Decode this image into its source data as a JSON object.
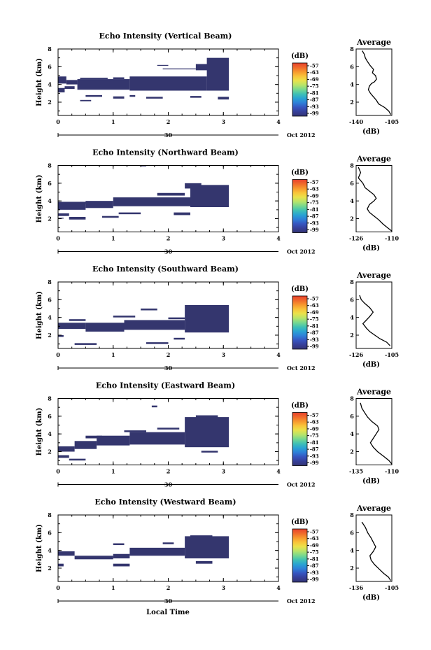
{
  "x_axis_label": "Local Time",
  "colorbar": {
    "unit": "(dB)",
    "ticks": [
      "-57",
      "-63",
      "-69",
      "-75",
      "-81",
      "-87",
      "-93",
      "-99"
    ],
    "colors": [
      "#e8412d",
      "#f06a2c",
      "#f7982e",
      "#f9c43a",
      "#e9e24b",
      "#b7e46a",
      "#77d88f",
      "#3fc1b4",
      "#29a3d3",
      "#2e7fd8",
      "#3655c0",
      "#363f99",
      "#343573"
    ]
  },
  "chart_data": [
    {
      "type": "heatmap",
      "title": "Echo Intensity (Vertical Beam)",
      "ylabel": "Height (km)",
      "ylim": [
        0.5,
        8
      ],
      "xlim": [
        0,
        4
      ],
      "y_ticks": [
        "2",
        "4",
        "6",
        "8"
      ],
      "x_ticks": [
        "0",
        "1",
        "2",
        "3",
        "4"
      ],
      "date_day": "30",
      "date_label": "Oct 2012",
      "fill": "#34366e",
      "blocks": [
        [
          0.0,
          0.15,
          4.1,
          4.9
        ],
        [
          0.15,
          0.35,
          4.0,
          4.5
        ],
        [
          0.35,
          1.3,
          3.4,
          4.6
        ],
        [
          0.4,
          0.9,
          4.6,
          4.75
        ],
        [
          1.3,
          2.7,
          3.3,
          4.9
        ],
        [
          1.0,
          1.2,
          4.6,
          4.8
        ],
        [
          2.7,
          3.1,
          3.3,
          7.0
        ],
        [
          2.5,
          2.8,
          5.6,
          6.3
        ],
        [
          1.9,
          2.5,
          5.7,
          5.8
        ],
        [
          0.0,
          0.12,
          3.1,
          3.6
        ],
        [
          0.12,
          0.3,
          3.5,
          3.8
        ],
        [
          0.5,
          0.8,
          2.6,
          2.8
        ],
        [
          1.0,
          1.2,
          2.4,
          2.65
        ],
        [
          1.3,
          1.4,
          2.6,
          2.8
        ],
        [
          1.6,
          1.9,
          2.4,
          2.6
        ],
        [
          2.4,
          2.6,
          2.5,
          2.7
        ],
        [
          2.9,
          3.1,
          2.3,
          2.6
        ],
        [
          1.8,
          2.0,
          6.1,
          6.2
        ],
        [
          0.4,
          0.6,
          2.1,
          2.25
        ]
      ],
      "avg": {
        "xlim": [
          -140,
          -105
        ],
        "x_ticks": [
          "-140",
          "-105"
        ],
        "ylim": [
          0.5,
          8
        ],
        "xlabel": "(dB)",
        "title": "Average",
        "profile": [
          [
            -106,
            0.6
          ],
          [
            -108,
            1.0
          ],
          [
            -112,
            1.4
          ],
          [
            -118,
            1.8
          ],
          [
            -120,
            2.2
          ],
          [
            -123,
            2.6
          ],
          [
            -126,
            3.0
          ],
          [
            -128,
            3.4
          ],
          [
            -127,
            3.8
          ],
          [
            -125,
            4.1
          ],
          [
            -122,
            4.3
          ],
          [
            -120,
            4.6
          ],
          [
            -121,
            5.0
          ],
          [
            -124,
            5.3
          ],
          [
            -123,
            5.7
          ],
          [
            -126,
            6.1
          ],
          [
            -129,
            6.6
          ],
          [
            -131,
            7.0
          ],
          [
            -132,
            7.4
          ],
          [
            -134,
            7.8
          ]
        ]
      }
    },
    {
      "type": "heatmap",
      "title": "Echo Intensity (Northward Beam)",
      "ylabel": "Height (km)",
      "ylim": [
        0.5,
        8
      ],
      "xlim": [
        0,
        4
      ],
      "y_ticks": [
        "2",
        "4",
        "6",
        "8"
      ],
      "x_ticks": [
        "0",
        "1",
        "2",
        "3",
        "4"
      ],
      "date_day": "30",
      "date_label": "Oct 2012",
      "fill": "#34366e",
      "blocks": [
        [
          0.0,
          0.5,
          3.0,
          3.9
        ],
        [
          0.5,
          1.0,
          3.2,
          4.0
        ],
        [
          1.0,
          2.4,
          3.4,
          4.4
        ],
        [
          2.4,
          3.1,
          3.3,
          5.8
        ],
        [
          2.3,
          2.6,
          5.4,
          6.0
        ],
        [
          1.8,
          2.3,
          4.6,
          4.9
        ],
        [
          0.0,
          0.2,
          2.3,
          2.6
        ],
        [
          0.2,
          0.5,
          1.9,
          2.2
        ],
        [
          0.8,
          1.1,
          2.1,
          2.3
        ],
        [
          1.1,
          1.5,
          2.5,
          2.7
        ],
        [
          2.1,
          2.4,
          2.4,
          2.7
        ],
        [
          1.5,
          1.6,
          7.9,
          8.1
        ],
        [
          0.4,
          0.6,
          3.7,
          3.9
        ],
        [
          0.0,
          0.1,
          2.0,
          2.1
        ]
      ],
      "avg": {
        "xlim": [
          -126,
          -110
        ],
        "x_ticks": [
          "-126",
          "-110"
        ],
        "ylim": [
          0.5,
          8
        ],
        "xlabel": "(dB)",
        "title": "Average",
        "profile": [
          [
            -110,
            0.6
          ],
          [
            -112,
            1.0
          ],
          [
            -114,
            1.4
          ],
          [
            -116,
            1.9
          ],
          [
            -118,
            2.3
          ],
          [
            -120,
            2.7
          ],
          [
            -121,
            3.1
          ],
          [
            -120,
            3.6
          ],
          [
            -118,
            4.0
          ],
          [
            -117,
            4.3
          ],
          [
            -118,
            4.7
          ],
          [
            -120,
            5.1
          ],
          [
            -122,
            5.5
          ],
          [
            -123,
            6.0
          ],
          [
            -125,
            6.6
          ],
          [
            -124,
            7.2
          ],
          [
            -125,
            7.8
          ]
        ]
      }
    },
    {
      "type": "heatmap",
      "title": "Echo Intensity (Southward Beam)",
      "ylabel": "Height (km)",
      "ylim": [
        0.5,
        8
      ],
      "xlim": [
        0,
        4
      ],
      "y_ticks": [
        "2",
        "4",
        "6",
        "8"
      ],
      "x_ticks": [
        "0",
        "1",
        "2",
        "3",
        "4"
      ],
      "date_day": "30",
      "date_label": "Oct 2012",
      "fill": "#34366e",
      "blocks": [
        [
          0.0,
          0.5,
          2.7,
          3.4
        ],
        [
          0.5,
          1.2,
          2.4,
          3.4
        ],
        [
          1.2,
          2.3,
          2.6,
          3.7
        ],
        [
          2.3,
          3.1,
          2.3,
          5.4
        ],
        [
          2.6,
          2.9,
          4.6,
          5.0
        ],
        [
          1.5,
          1.8,
          4.8,
          5.0
        ],
        [
          0.2,
          0.5,
          3.6,
          3.8
        ],
        [
          1.0,
          1.4,
          4.0,
          4.2
        ],
        [
          2.0,
          2.3,
          3.8,
          4.0
        ],
        [
          0.0,
          0.1,
          1.8,
          2.0
        ],
        [
          0.3,
          0.7,
          0.9,
          1.1
        ],
        [
          1.6,
          2.0,
          1.0,
          1.2
        ],
        [
          2.1,
          2.3,
          1.5,
          1.7
        ]
      ],
      "avg": {
        "xlim": [
          -126,
          -105
        ],
        "x_ticks": [
          "-126",
          "-105"
        ],
        "ylim": [
          0.5,
          8
        ],
        "xlabel": "(dB)",
        "title": "Average",
        "profile": [
          [
            -106,
            0.8
          ],
          [
            -108,
            1.2
          ],
          [
            -112,
            1.6
          ],
          [
            -115,
            2.0
          ],
          [
            -118,
            2.4
          ],
          [
            -120,
            2.8
          ],
          [
            -122,
            3.3
          ],
          [
            -120,
            3.7
          ],
          [
            -118,
            4.1
          ],
          [
            -116,
            4.6
          ],
          [
            -118,
            5.1
          ],
          [
            -121,
            5.6
          ],
          [
            -123,
            6.0
          ],
          [
            -124,
            6.5
          ]
        ]
      }
    },
    {
      "type": "heatmap",
      "title": "Echo Intensity (Eastward Beam)",
      "ylabel": "Height (km)",
      "ylim": [
        0.5,
        8
      ],
      "xlim": [
        0,
        4
      ],
      "y_ticks": [
        "2",
        "4",
        "6",
        "8"
      ],
      "x_ticks": [
        "0",
        "1",
        "2",
        "3",
        "4"
      ],
      "date_day": "30",
      "date_label": "Oct 2012",
      "fill": "#34366e",
      "blocks": [
        [
          0.0,
          0.3,
          2.0,
          2.6
        ],
        [
          0.3,
          0.7,
          2.3,
          3.2
        ],
        [
          0.7,
          1.3,
          2.7,
          3.8
        ],
        [
          1.3,
          2.3,
          2.8,
          4.2
        ],
        [
          2.3,
          3.1,
          2.5,
          5.9
        ],
        [
          2.5,
          2.9,
          5.6,
          6.1
        ],
        [
          0.5,
          0.8,
          3.5,
          3.8
        ],
        [
          1.2,
          1.6,
          4.2,
          4.4
        ],
        [
          1.8,
          2.2,
          4.5,
          4.7
        ],
        [
          1.7,
          1.8,
          7.0,
          7.2
        ],
        [
          0.0,
          0.2,
          1.3,
          1.6
        ],
        [
          0.2,
          0.5,
          1.0,
          1.2
        ],
        [
          2.6,
          2.9,
          1.9,
          2.1
        ]
      ],
      "avg": {
        "xlim": [
          -135,
          -110
        ],
        "x_ticks": [
          "-135",
          "-110"
        ],
        "ylim": [
          0.5,
          8
        ],
        "xlabel": "(dB)",
        "title": "Average",
        "profile": [
          [
            -110,
            0.6
          ],
          [
            -112,
            1.0
          ],
          [
            -116,
            1.5
          ],
          [
            -120,
            2.0
          ],
          [
            -123,
            2.5
          ],
          [
            -125,
            3.0
          ],
          [
            -123,
            3.5
          ],
          [
            -121,
            4.0
          ],
          [
            -119,
            4.5
          ],
          [
            -120,
            4.9
          ],
          [
            -124,
            5.4
          ],
          [
            -127,
            5.9
          ],
          [
            -129,
            6.4
          ],
          [
            -131,
            6.9
          ],
          [
            -132,
            7.5
          ]
        ]
      }
    },
    {
      "type": "heatmap",
      "title": "Echo Intensity (Westward Beam)",
      "ylabel": "Height (km)",
      "ylim": [
        0.5,
        8
      ],
      "xlim": [
        0,
        4
      ],
      "y_ticks": [
        "2",
        "4",
        "6",
        "8"
      ],
      "x_ticks": [
        "0",
        "1",
        "2",
        "3",
        "4"
      ],
      "date_day": "30",
      "date_label": "Oct 2012",
      "fill": "#34366e",
      "blocks": [
        [
          0.0,
          0.3,
          3.4,
          3.9
        ],
        [
          0.3,
          1.0,
          3.0,
          3.4
        ],
        [
          1.0,
          1.3,
          3.1,
          3.6
        ],
        [
          1.3,
          2.3,
          3.4,
          4.3
        ],
        [
          2.3,
          3.1,
          3.1,
          5.6
        ],
        [
          2.4,
          2.8,
          5.3,
          5.7
        ],
        [
          1.0,
          1.2,
          4.6,
          4.8
        ],
        [
          1.9,
          2.1,
          4.7,
          4.9
        ],
        [
          0.0,
          0.1,
          2.2,
          2.5
        ],
        [
          1.0,
          1.3,
          2.2,
          2.5
        ],
        [
          2.5,
          2.8,
          2.5,
          2.8
        ]
      ],
      "avg": {
        "xlim": [
          -136,
          -105
        ],
        "x_ticks": [
          "-136",
          "-105"
        ],
        "ylim": [
          0.5,
          8
        ],
        "xlabel": "(dB)",
        "title": "Average",
        "profile": [
          [
            -106,
            0.6
          ],
          [
            -108,
            1.0
          ],
          [
            -112,
            1.4
          ],
          [
            -116,
            1.9
          ],
          [
            -120,
            2.4
          ],
          [
            -123,
            2.9
          ],
          [
            -124,
            3.4
          ],
          [
            -121,
            3.9
          ],
          [
            -119,
            4.4
          ],
          [
            -121,
            4.9
          ],
          [
            -123,
            5.4
          ],
          [
            -126,
            6.0
          ],
          [
            -128,
            6.6
          ],
          [
            -131,
            7.2
          ]
        ]
      }
    }
  ]
}
